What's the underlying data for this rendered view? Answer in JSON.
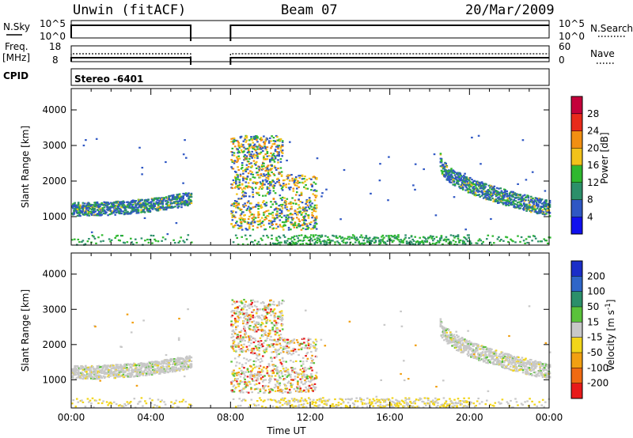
{
  "header": {
    "radar": "Unwin (fitACF)",
    "beam": "Beam 07",
    "date": "20/Mar/2009"
  },
  "summary_panels": {
    "nsky_label": "N.Sky",
    "nsearch_label": "N.Search",
    "freq_label_line1": "Freq.",
    "freq_label_line2": "[MHz]",
    "nave_label": "Nave",
    "cpid_label": "CPID",
    "cpid_value": "Stereo -6401",
    "left_ticks_nsky": [
      "10^5",
      "10^0"
    ],
    "right_ticks_nsearch": [
      "10^5",
      "10^0"
    ],
    "left_ticks_freq": [
      "18",
      "8"
    ],
    "right_ticks_nave": [
      "60",
      "0"
    ]
  },
  "chart_data": [
    {
      "type": "heatmap",
      "panel": "power",
      "title": "",
      "xlabel": "",
      "ylabel": "Slant Range [km]",
      "xlim_hours": [
        0,
        24
      ],
      "ylim_km": [
        200,
        4600
      ],
      "yticks": [
        "1000",
        "2000",
        "3000",
        "4000"
      ],
      "colorbar": {
        "label": "Power [dB]",
        "ticks": [
          "4",
          "8",
          "12",
          "16",
          "20",
          "24",
          "28"
        ],
        "colors": [
          "#1010ee",
          "#2f57c4",
          "#2c8f6a",
          "#2fb82f",
          "#f2c21a",
          "#f28f12",
          "#e82a1a",
          "#c4003a"
        ]
      },
      "data_gap_hours": [
        6,
        8
      ],
      "echo_regions": [
        {
          "name": "evening band",
          "from_h": 0.0,
          "to_h": 6.0,
          "range_km": [
            1100,
            1500
          ]
        },
        {
          "name": "morning echoes",
          "from_h": 8.0,
          "to_h": 12.3,
          "range_km": [
            600,
            3300
          ]
        },
        {
          "name": "late evening band",
          "from_h": 18.5,
          "to_h": 24.0,
          "range_km": [
            1000,
            2800
          ]
        },
        {
          "name": "near range clutter",
          "from_h": 0.0,
          "to_h": 24.0,
          "range_km": [
            200,
            500
          ]
        }
      ]
    },
    {
      "type": "heatmap",
      "panel": "velocity",
      "title": "",
      "xlabel": "Time UT",
      "ylabel": "Slant Range [km]",
      "xlim_hours": [
        0,
        24
      ],
      "ylim_km": [
        200,
        4600
      ],
      "yticks": [
        "1000",
        "2000",
        "3000",
        "4000"
      ],
      "xticks": [
        "00:00",
        "04:00",
        "08:00",
        "12:00",
        "16:00",
        "20:00",
        "00:00"
      ],
      "colorbar": {
        "label": "Velocity [m s",
        "label_superscript": "-1",
        "label_close": "]",
        "ticks": [
          "200",
          "100",
          "50",
          "15",
          "-15",
          "-50",
          "-100",
          "-200"
        ],
        "colors": [
          "#1b2ec8",
          "#2f66c8",
          "#2c8f6a",
          "#5ac23a",
          "#c8c8c8",
          "#f2d51a",
          "#f2a012",
          "#f06a12",
          "#e81a1a"
        ]
      },
      "data_gap_hours": [
        6,
        8
      ]
    }
  ]
}
